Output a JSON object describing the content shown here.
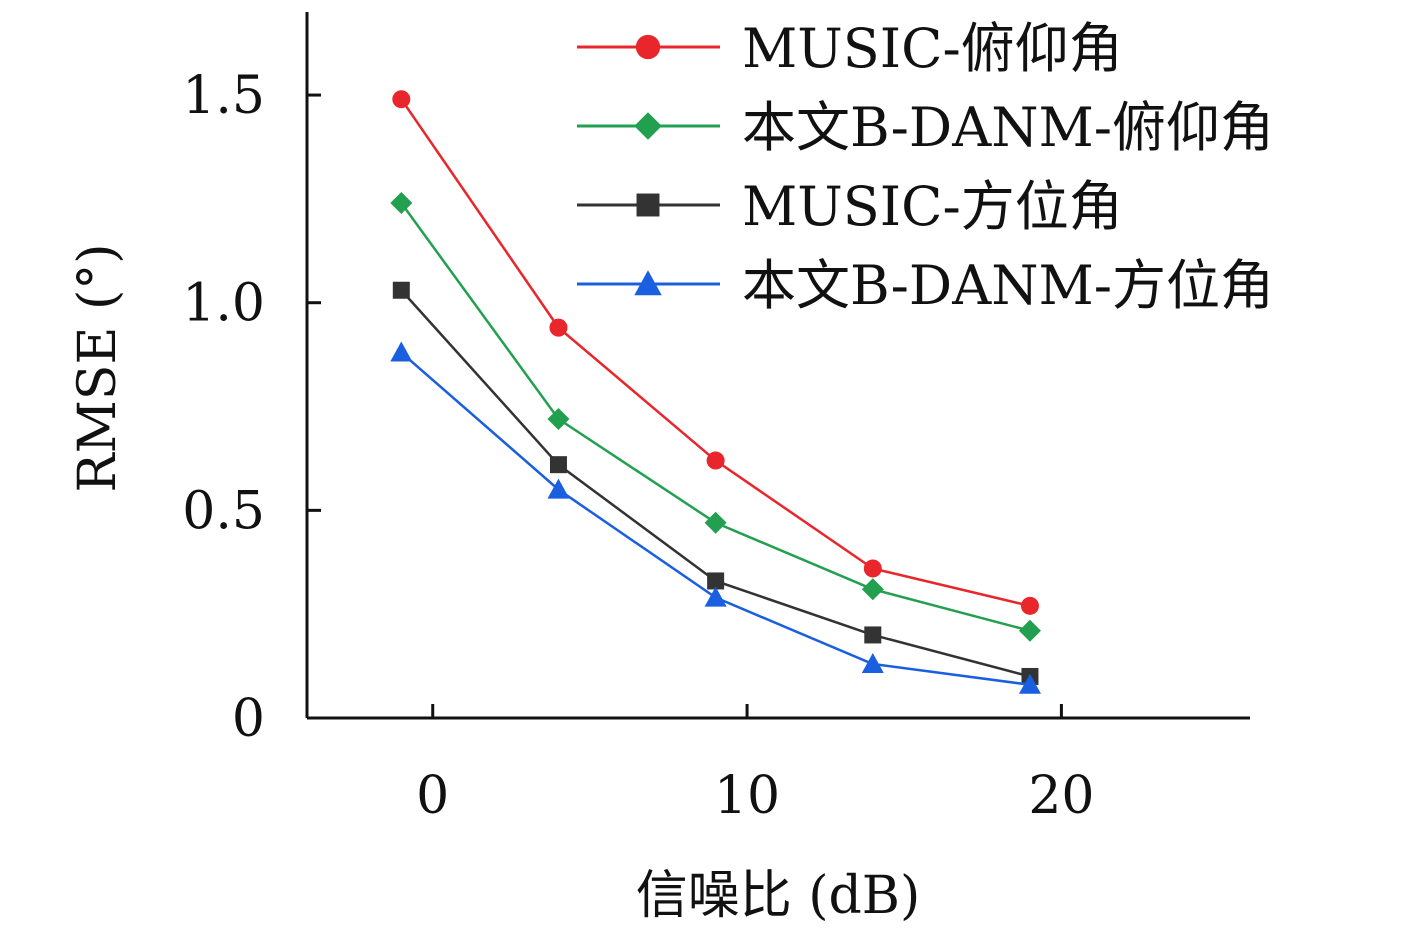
{
  "chart_data": {
    "type": "line",
    "xlabel": "信噪比 (dB)",
    "ylabel": "RMSE (°)",
    "xlim": [
      -4,
      26
    ],
    "ylim": [
      0,
      1.7
    ],
    "xticks": [
      0,
      10,
      20
    ],
    "xtick_labels": [
      "0",
      "10",
      "20"
    ],
    "yticks": [
      0,
      0.5,
      1.0,
      1.5
    ],
    "ytick_labels": [
      "0",
      "0.5",
      "1.0",
      "1.5"
    ],
    "x": [
      -1,
      4,
      9,
      14,
      19
    ],
    "grid": false,
    "legend_position": "top-right",
    "series": [
      {
        "name": "MUSIC-俯仰角",
        "color": "#e8262c",
        "marker": "circle",
        "values": [
          1.49,
          0.94,
          0.62,
          0.36,
          0.27
        ]
      },
      {
        "name": "本文B-DANM-俯仰角",
        "color": "#22a050",
        "marker": "diamond",
        "values": [
          1.24,
          0.72,
          0.47,
          0.31,
          0.21
        ]
      },
      {
        "name": "MUSIC-方位角",
        "color": "#333333",
        "marker": "square",
        "values": [
          1.03,
          0.61,
          0.33,
          0.2,
          0.1
        ]
      },
      {
        "name": "本文B-DANM-方位角",
        "color": "#1a5fe0",
        "marker": "triangle",
        "values": [
          0.88,
          0.55,
          0.29,
          0.13,
          0.08
        ]
      }
    ]
  }
}
